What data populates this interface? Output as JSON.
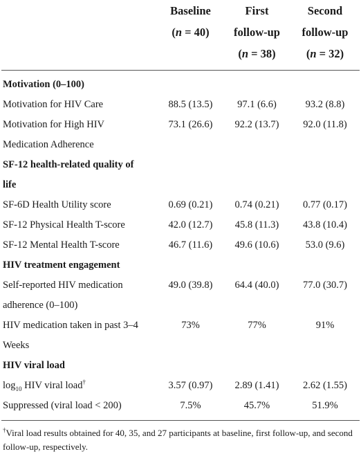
{
  "header": {
    "baseline": {
      "l1": "Baseline",
      "l2": "(n = 40)"
    },
    "first": {
      "l1": "First",
      "l2": "follow-up",
      "l3": "(n = 38)"
    },
    "second": {
      "l1": "Second",
      "l2": "follow-up",
      "l3": "(n = 32)"
    }
  },
  "rows": [
    {
      "type": "section",
      "label": "Motivation (0–100)"
    },
    {
      "type": "data",
      "label": "Motivation for HIV Care",
      "v": [
        "88.5 (13.5)",
        "97.1 (6.6)",
        "93.2 (8.8)"
      ]
    },
    {
      "type": "data",
      "label": "Motivation for High HIV",
      "label2": "Medication Adherence",
      "v": [
        "73.1 (26.6)",
        "92.2 (13.7)",
        "92.0 (11.8)"
      ]
    },
    {
      "type": "section",
      "label": "SF-12 health-related quality of",
      "label2": "life"
    },
    {
      "type": "data",
      "label": "SF-6D Health Utility score",
      "v": [
        "0.69 (0.21)",
        "0.74 (0.21)",
        "0.77 (0.17)"
      ]
    },
    {
      "type": "data",
      "label": "SF-12 Physical Health T-score",
      "v": [
        "42.0 (12.7)",
        "45.8 (11.3)",
        "43.8 (10.4)"
      ]
    },
    {
      "type": "data",
      "label": "SF-12 Mental Health T-score",
      "v": [
        "46.7 (11.6)",
        "49.6 (10.6)",
        "53.0 (9.6)"
      ]
    },
    {
      "type": "section",
      "label": "HIV treatment engagement"
    },
    {
      "type": "data",
      "label": "Self-reported HIV medication",
      "label2": "adherence (0–100)",
      "v": [
        "49.0 (39.8)",
        "64.4 (40.0)",
        "77.0 (30.7)"
      ]
    },
    {
      "type": "data",
      "label": "HIV medication taken in past 3–4",
      "label2": "Weeks",
      "v": [
        "73%",
        "77%",
        "91%"
      ]
    },
    {
      "type": "section",
      "label": "HIV viral load"
    },
    {
      "type": "viral",
      "pre": "log",
      "sub": "10",
      "post": " HIV viral load",
      "mark": "†",
      "v": [
        "3.57 (0.97)",
        "2.89 (1.41)",
        "2.62 (1.55)"
      ]
    },
    {
      "type": "data",
      "label": "Suppressed (viral load < 200)",
      "v": [
        "7.5%",
        "45.7%",
        "51.9%"
      ]
    }
  ],
  "footnote": {
    "mark": "†",
    "text": "Viral load results obtained for 40, 35, and 27 participants at baseline, first follow-up, and second follow-up, respectively."
  }
}
